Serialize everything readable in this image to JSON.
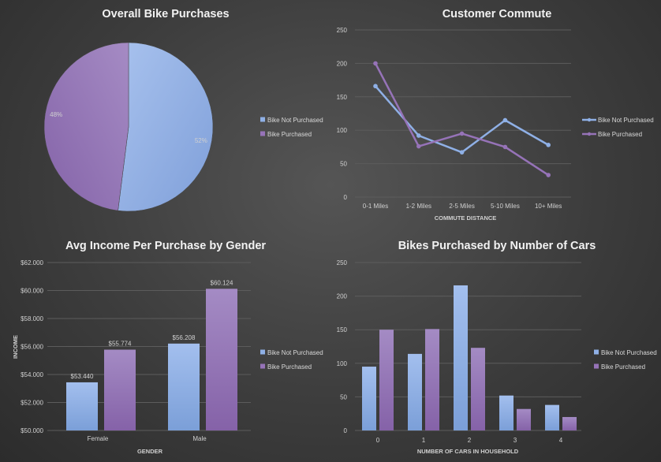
{
  "colors": {
    "not_purchased": "#8fb0e6",
    "purchased": "#9673b8"
  },
  "chart_data": [
    {
      "type": "pie",
      "title": "Overall Bike Purchases",
      "categories": [
        "Bike Not Purchased",
        "Bike Purchased"
      ],
      "values": [
        52,
        48
      ],
      "labels": [
        "52%",
        "48%"
      ],
      "legend": "right"
    },
    {
      "type": "line",
      "title": "Customer Commute",
      "xlabel": "COMMUTE DISTANCE",
      "ylabel": "",
      "categories": [
        "0-1 Miles",
        "1-2 Miles",
        "2-5 Miles",
        "5-10 Miles",
        "10+ Miles"
      ],
      "series": [
        {
          "name": "Bike Not Purchased",
          "values": [
            166,
            92,
            67,
            115,
            78
          ]
        },
        {
          "name": "Bike Purchased",
          "values": [
            200,
            76,
            95,
            75,
            33
          ]
        }
      ],
      "ylim": [
        0,
        250
      ],
      "yticks": [
        "0",
        "50",
        "100",
        "150",
        "200",
        "250"
      ],
      "grid": true,
      "legend": "right"
    },
    {
      "type": "bar",
      "title": "Avg Income Per Purchase by Gender",
      "xlabel": "GENDER",
      "ylabel": "INCOME",
      "categories": [
        "Female",
        "Male"
      ],
      "series": [
        {
          "name": "Bike Not Purchased",
          "values": [
            53440,
            56208
          ],
          "labels": [
            "$53.440",
            "$56.208"
          ]
        },
        {
          "name": "Bike Purchased",
          "values": [
            55774,
            60124
          ],
          "labels": [
            "$55.774",
            "$60.124"
          ]
        }
      ],
      "ylim": [
        50000,
        62000
      ],
      "yticks": [
        "$50.000",
        "$52.000",
        "$54.000",
        "$56.000",
        "$58.000",
        "$60.000",
        "$62.000"
      ],
      "grid": true,
      "legend": "right"
    },
    {
      "type": "bar",
      "title": "Bikes Purchased by Number of Cars",
      "xlabel": "NUMBER OF CARS IN HOUSEHOLD",
      "ylabel": "",
      "categories": [
        "0",
        "1",
        "2",
        "3",
        "4"
      ],
      "series": [
        {
          "name": "Bike Not Purchased",
          "values": [
            95,
            114,
            216,
            52,
            38
          ]
        },
        {
          "name": "Bike Purchased",
          "values": [
            150,
            151,
            123,
            32,
            20
          ]
        }
      ],
      "ylim": [
        0,
        250
      ],
      "yticks": [
        "0",
        "50",
        "100",
        "150",
        "200",
        "250"
      ],
      "grid": true,
      "legend": "right"
    }
  ]
}
